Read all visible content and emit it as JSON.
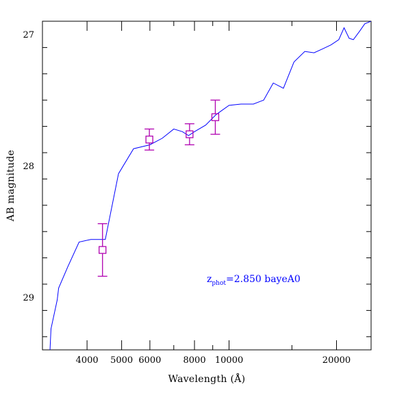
{
  "chart_data": {
    "type": "line",
    "xlabel": "Wavelength (Å)",
    "ylabel": "AB magnitude",
    "x_scale": "log",
    "y_inverted": true,
    "xlim": [
      3000,
      25000
    ],
    "ylim": [
      29.4,
      26.9
    ],
    "x_ticks": [
      {
        "value": 4000,
        "label": "4000"
      },
      {
        "value": 5000,
        "label": "5000"
      },
      {
        "value": 6000,
        "label": "6000"
      },
      {
        "value": 8000,
        "label": "8000"
      },
      {
        "value": 10000,
        "label": "10000"
      },
      {
        "value": 20000,
        "label": "20000"
      }
    ],
    "y_ticks": [
      {
        "value": 27,
        "label": "27"
      },
      {
        "value": 28,
        "label": "28"
      },
      {
        "value": 29,
        "label": "29"
      }
    ],
    "grid": false,
    "annotation": {
      "main": "z",
      "sub": "phot",
      "rest": "=2.850 bayeA0"
    },
    "series": [
      {
        "kind": "line",
        "color": "#0000ff",
        "points": [
          [
            3150,
            29.4
          ],
          [
            3170,
            29.24
          ],
          [
            3300,
            29.02
          ],
          [
            3330,
            28.93
          ],
          [
            3530,
            28.77
          ],
          [
            3800,
            28.58
          ],
          [
            4100,
            28.56
          ],
          [
            4500,
            28.56
          ],
          [
            4900,
            28.06
          ],
          [
            5400,
            27.87
          ],
          [
            6000,
            27.84
          ],
          [
            6500,
            27.79
          ],
          [
            7000,
            27.72
          ],
          [
            7400,
            27.74
          ],
          [
            7700,
            27.77
          ],
          [
            8000,
            27.74
          ],
          [
            8600,
            27.69
          ],
          [
            9200,
            27.61
          ],
          [
            10000,
            27.54
          ],
          [
            10800,
            27.53
          ],
          [
            11700,
            27.53
          ],
          [
            12500,
            27.5
          ],
          [
            13300,
            27.37
          ],
          [
            14200,
            27.41
          ],
          [
            15200,
            27.21
          ],
          [
            16300,
            27.13
          ],
          [
            17300,
            27.14
          ],
          [
            18300,
            27.11
          ],
          [
            19300,
            27.08
          ],
          [
            20300,
            27.04
          ],
          [
            21000,
            26.95
          ],
          [
            21700,
            27.03
          ],
          [
            22300,
            27.04
          ],
          [
            23300,
            26.97
          ],
          [
            24000,
            26.92
          ],
          [
            25000,
            26.9
          ]
        ]
      },
      {
        "kind": "errorbar",
        "color": "#b000b0",
        "marker": "square",
        "points": [
          {
            "x": 4420,
            "y": 28.64,
            "yerr_low": 0.2,
            "yerr_high": 0.2
          },
          {
            "x": 5980,
            "y": 27.8,
            "yerr_low": 0.08,
            "yerr_high": 0.08
          },
          {
            "x": 7750,
            "y": 27.76,
            "yerr_low": 0.08,
            "yerr_high": 0.08
          },
          {
            "x": 9150,
            "y": 27.63,
            "yerr_low": 0.13,
            "yerr_high": 0.13
          }
        ]
      }
    ]
  }
}
